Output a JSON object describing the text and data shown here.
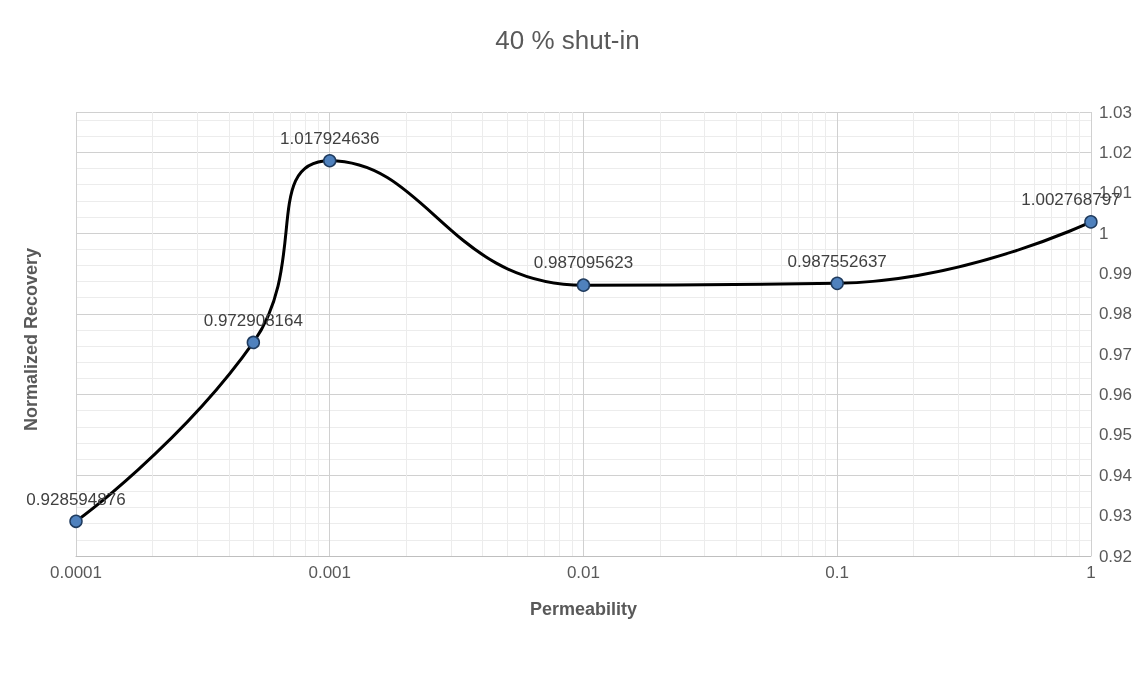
{
  "chart_data": {
    "type": "line",
    "title": "40 % shut-in",
    "xlabel": "Permeability",
    "ylabel": "Normalized Recovery",
    "x": [
      0.0001,
      0.0005,
      0.001,
      0.01,
      0.1,
      1
    ],
    "series": [
      {
        "color": "#000000",
        "colors": [
          "#4f81bd",
          "#4f81bd",
          "#4f81bd",
          "#4f81bd",
          "#4f81bd",
          "#4f81bd"
        ],
        "values": [
          0.928594876,
          0.972908164,
          1.017924636,
          0.987095623,
          0.987552637,
          1.002768797
        ]
      }
    ],
    "data_labels": true,
    "log": "x",
    "xlim": [
      0.0001,
      1
    ],
    "xticks": [
      0.0001,
      0.001,
      0.01,
      0.1,
      1
    ],
    "ylim": [
      0.92,
      1.03
    ],
    "yticks": [
      0.92,
      0.93,
      0.94,
      0.95,
      0.96,
      0.97,
      0.98,
      0.99,
      1,
      1.01,
      1.02,
      1.03
    ],
    "grid": true,
    "marker": "circle",
    "line_style": "solid"
  }
}
